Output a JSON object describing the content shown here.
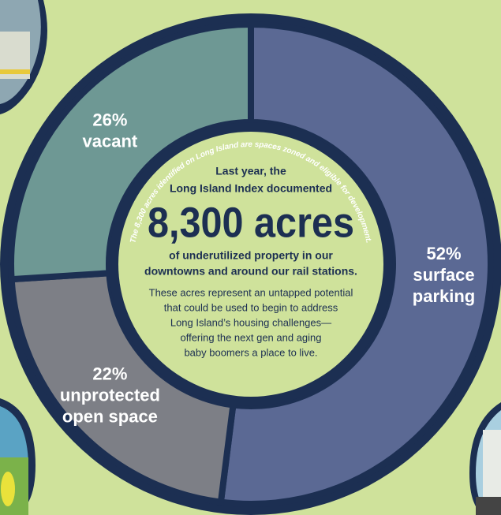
{
  "chart_data": {
    "type": "donut",
    "categories": [
      [
        "surface",
        "parking"
      ],
      [
        "unprotected",
        "open space"
      ],
      [
        "vacant"
      ]
    ],
    "values": [
      52,
      22,
      26
    ],
    "value_labels": [
      "52%",
      "22%",
      "26%"
    ],
    "colors": [
      "#5b6994",
      "#7d7f86",
      "#6e9894"
    ],
    "annotations": {
      "arc_text": "The 8,300 acres identified on Long Island are spaces zoned and eligible for development.",
      "intro": [
        "Last year, the",
        "Long Island Index documented"
      ],
      "headline": "8,300 acres",
      "subhead": [
        "of underutilized property in our",
        "downtowns and around our rail stations."
      ],
      "body": [
        "These acres represent an untapped potential",
        "that could be used to begin to address",
        "Long Island’s housing challenges—",
        "offering the next gen and aging",
        "baby boomers a place to live."
      ]
    }
  }
}
